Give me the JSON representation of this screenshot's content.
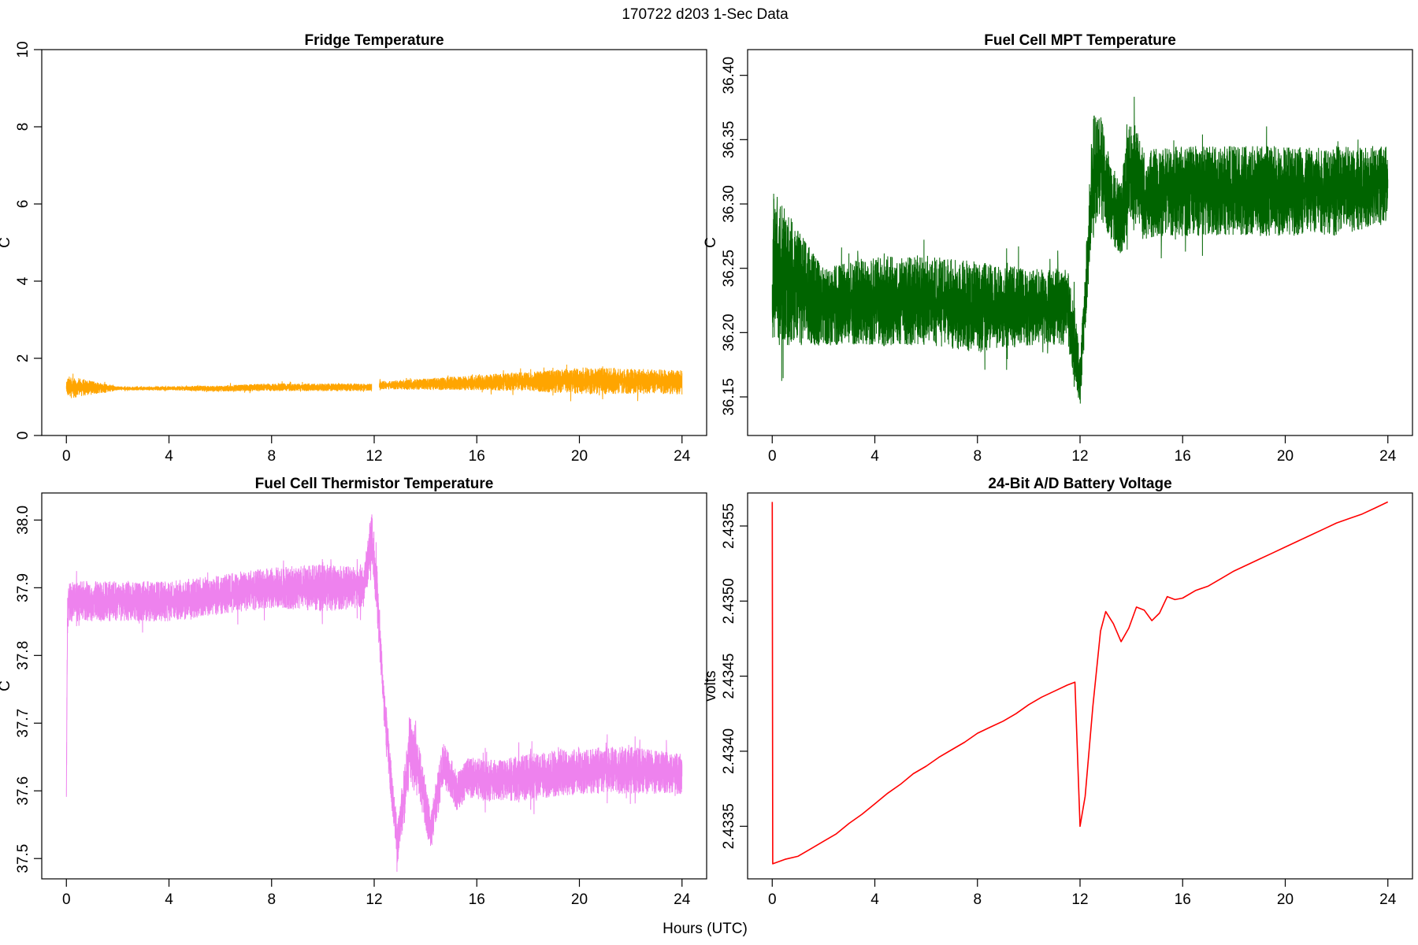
{
  "figure_title": "170722   d203   1-Sec Data",
  "shared_xlabel": "Hours (UTC)",
  "chart_data": [
    {
      "id": "fridge",
      "type": "line",
      "title": "Fridge Temperature",
      "xlabel": "",
      "ylabel": "C",
      "xlim": [
        0,
        24
      ],
      "ylim": [
        0,
        10
      ],
      "xticks": [
        0,
        4,
        8,
        12,
        16,
        20,
        24
      ],
      "yticks": [
        0,
        2,
        4,
        6,
        8,
        10
      ],
      "ytick_labels": [
        "0",
        "2",
        "4",
        "6",
        "8",
        "10"
      ],
      "color": "#ffa500",
      "style": "noisy-band",
      "series": [
        {
          "x": [
            0,
            0.05,
            2,
            4,
            6,
            8,
            10,
            11.9,
            12.0,
            12.2,
            14,
            16,
            18,
            19,
            20,
            21,
            22,
            23,
            24
          ],
          "center": [
            1.25,
            1.25,
            1.22,
            1.22,
            1.22,
            1.25,
            1.25,
            1.25,
            null,
            1.3,
            1.33,
            1.37,
            1.4,
            1.4,
            1.42,
            1.42,
            1.4,
            1.4,
            1.38
          ],
          "half_range": [
            0.1,
            0.3,
            0.05,
            0.05,
            0.08,
            0.1,
            0.1,
            0.1,
            null,
            0.1,
            0.15,
            0.2,
            0.25,
            0.3,
            0.35,
            0.35,
            0.33,
            0.32,
            0.32
          ]
        }
      ]
    },
    {
      "id": "mpt",
      "type": "line",
      "title": "Fuel Cell MPT Temperature",
      "xlabel": "",
      "ylabel": "C",
      "xlim": [
        0,
        24
      ],
      "ylim": [
        36.12,
        36.42
      ],
      "xticks": [
        0,
        4,
        8,
        12,
        16,
        20,
        24
      ],
      "yticks": [
        36.15,
        36.2,
        36.25,
        36.3,
        36.35,
        36.4
      ],
      "ytick_labels": [
        "36.15",
        "36.20",
        "36.25",
        "36.30",
        "36.35",
        "36.40"
      ],
      "color": "#006400",
      "style": "noisy-band",
      "series": [
        {
          "x": [
            0,
            0.05,
            2,
            4,
            6,
            8,
            10,
            11.5,
            11.8,
            12.0,
            12.3,
            12.5,
            12.8,
            13.2,
            13.6,
            14.0,
            14.5,
            15,
            16,
            18,
            20,
            22,
            24
          ],
          "center": [
            36.22,
            36.25,
            36.22,
            36.225,
            36.225,
            36.22,
            36.22,
            36.22,
            36.19,
            36.16,
            36.26,
            36.32,
            36.33,
            36.3,
            36.29,
            36.33,
            36.305,
            36.31,
            36.31,
            36.31,
            36.31,
            36.31,
            36.315
          ],
          "half_range": [
            0.03,
            0.06,
            0.03,
            0.035,
            0.035,
            0.035,
            0.03,
            0.03,
            0.03,
            0.02,
            0.03,
            0.05,
            0.04,
            0.03,
            0.03,
            0.04,
            0.035,
            0.035,
            0.035,
            0.035,
            0.035,
            0.035,
            0.03
          ]
        }
      ]
    },
    {
      "id": "thermistor",
      "type": "line",
      "title": "Fuel Cell Thermistor Temperature",
      "xlabel": "",
      "ylabel": "C",
      "xlim": [
        0,
        24
      ],
      "ylim": [
        37.47,
        38.04
      ],
      "xticks": [
        0,
        4,
        8,
        12,
        16,
        20,
        24
      ],
      "yticks": [
        37.5,
        37.6,
        37.7,
        37.8,
        37.9,
        38.0
      ],
      "ytick_labels": [
        "37.5",
        "37.6",
        "37.7",
        "37.8",
        "37.9",
        "38.0"
      ],
      "color": "#ee82ee",
      "style": "noisy-band",
      "series": [
        {
          "x": [
            0,
            0.04,
            0.1,
            2,
            4,
            6,
            8,
            10,
            11.6,
            11.9,
            12.1,
            12.4,
            12.9,
            13.4,
            13.8,
            14.2,
            14.7,
            15.2,
            15.7,
            16.5,
            18,
            20,
            22,
            24
          ],
          "center": [
            37.6,
            37.86,
            37.88,
            37.88,
            37.88,
            37.89,
            37.9,
            37.9,
            37.9,
            37.98,
            37.9,
            37.72,
            37.52,
            37.66,
            37.62,
            37.54,
            37.64,
            37.6,
            37.62,
            37.615,
            37.62,
            37.63,
            37.63,
            37.625
          ],
          "half_range": [
            0.02,
            0.03,
            0.03,
            0.03,
            0.03,
            0.03,
            0.03,
            0.035,
            0.03,
            0.04,
            0.04,
            0.03,
            0.03,
            0.05,
            0.04,
            0.03,
            0.035,
            0.03,
            0.03,
            0.03,
            0.035,
            0.035,
            0.035,
            0.03
          ]
        }
      ]
    },
    {
      "id": "battery",
      "type": "line",
      "title": "24-Bit A/D Battery Voltage",
      "xlabel": "",
      "ylabel": "volts",
      "xlim": [
        0,
        24
      ],
      "ylim": [
        2.43315,
        2.43572
      ],
      "xticks": [
        0,
        4,
        8,
        12,
        16,
        20,
        24
      ],
      "yticks": [
        2.4335,
        2.434,
        2.4345,
        2.435,
        2.4355
      ],
      "ytick_labels": [
        "2.4335",
        "2.4340",
        "2.4345",
        "2.4350",
        "2.4355"
      ],
      "color": "#ff0000",
      "style": "line",
      "series": [
        {
          "x": [
            0,
            0.02,
            0.5,
            1.0,
            1.5,
            2.0,
            2.5,
            3.0,
            3.5,
            4.0,
            4.5,
            5.0,
            5.5,
            6.0,
            6.5,
            7.0,
            7.5,
            8.0,
            8.5,
            9.0,
            9.5,
            10.0,
            10.5,
            11.0,
            11.5,
            11.8,
            12.0,
            12.2,
            12.5,
            12.8,
            13.0,
            13.3,
            13.6,
            13.9,
            14.2,
            14.5,
            14.8,
            15.1,
            15.4,
            15.7,
            16.0,
            16.5,
            17.0,
            17.5,
            18.0,
            18.5,
            19.0,
            19.5,
            20.0,
            20.5,
            21.0,
            21.5,
            22.0,
            22.5,
            23.0,
            23.5,
            24.0
          ],
          "y": [
            2.43566,
            2.43325,
            2.43328,
            2.4333,
            2.43335,
            2.4334,
            2.43345,
            2.43352,
            2.43358,
            2.43365,
            2.43372,
            2.43378,
            2.43385,
            2.4339,
            2.43396,
            2.43401,
            2.43406,
            2.43412,
            2.43416,
            2.4342,
            2.43425,
            2.43431,
            2.43436,
            2.4344,
            2.43444,
            2.43446,
            2.4335,
            2.4337,
            2.4343,
            2.4348,
            2.43493,
            2.43485,
            2.43473,
            2.43482,
            2.43496,
            2.43494,
            2.43487,
            2.43492,
            2.43503,
            2.43501,
            2.43502,
            2.43507,
            2.4351,
            2.43515,
            2.4352,
            2.43524,
            2.43528,
            2.43532,
            2.43536,
            2.4354,
            2.43544,
            2.43548,
            2.43552,
            2.43555,
            2.43558,
            2.43562,
            2.43566
          ]
        }
      ]
    }
  ]
}
